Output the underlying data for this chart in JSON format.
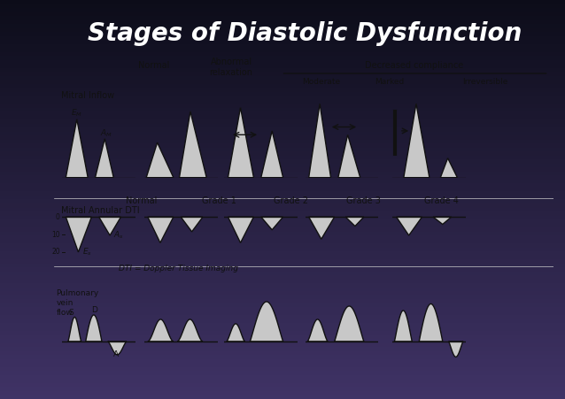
{
  "title": "Stages of Diastolic Dysfunction",
  "title_color": "#ffffff",
  "bg_top": "#111111",
  "bg_bottom": "#3a3a6a",
  "panel_bg": "#ffffff",
  "fill_color": "#c8c8c8",
  "line_color": "#111111",
  "title_fontsize": 20,
  "grade_labels": [
    "Normal",
    "Grade 1",
    "Grade 2",
    "Grade 3",
    "Grade 4"
  ],
  "dti_footnote": "DTI = Doppler Tissue Imaging"
}
